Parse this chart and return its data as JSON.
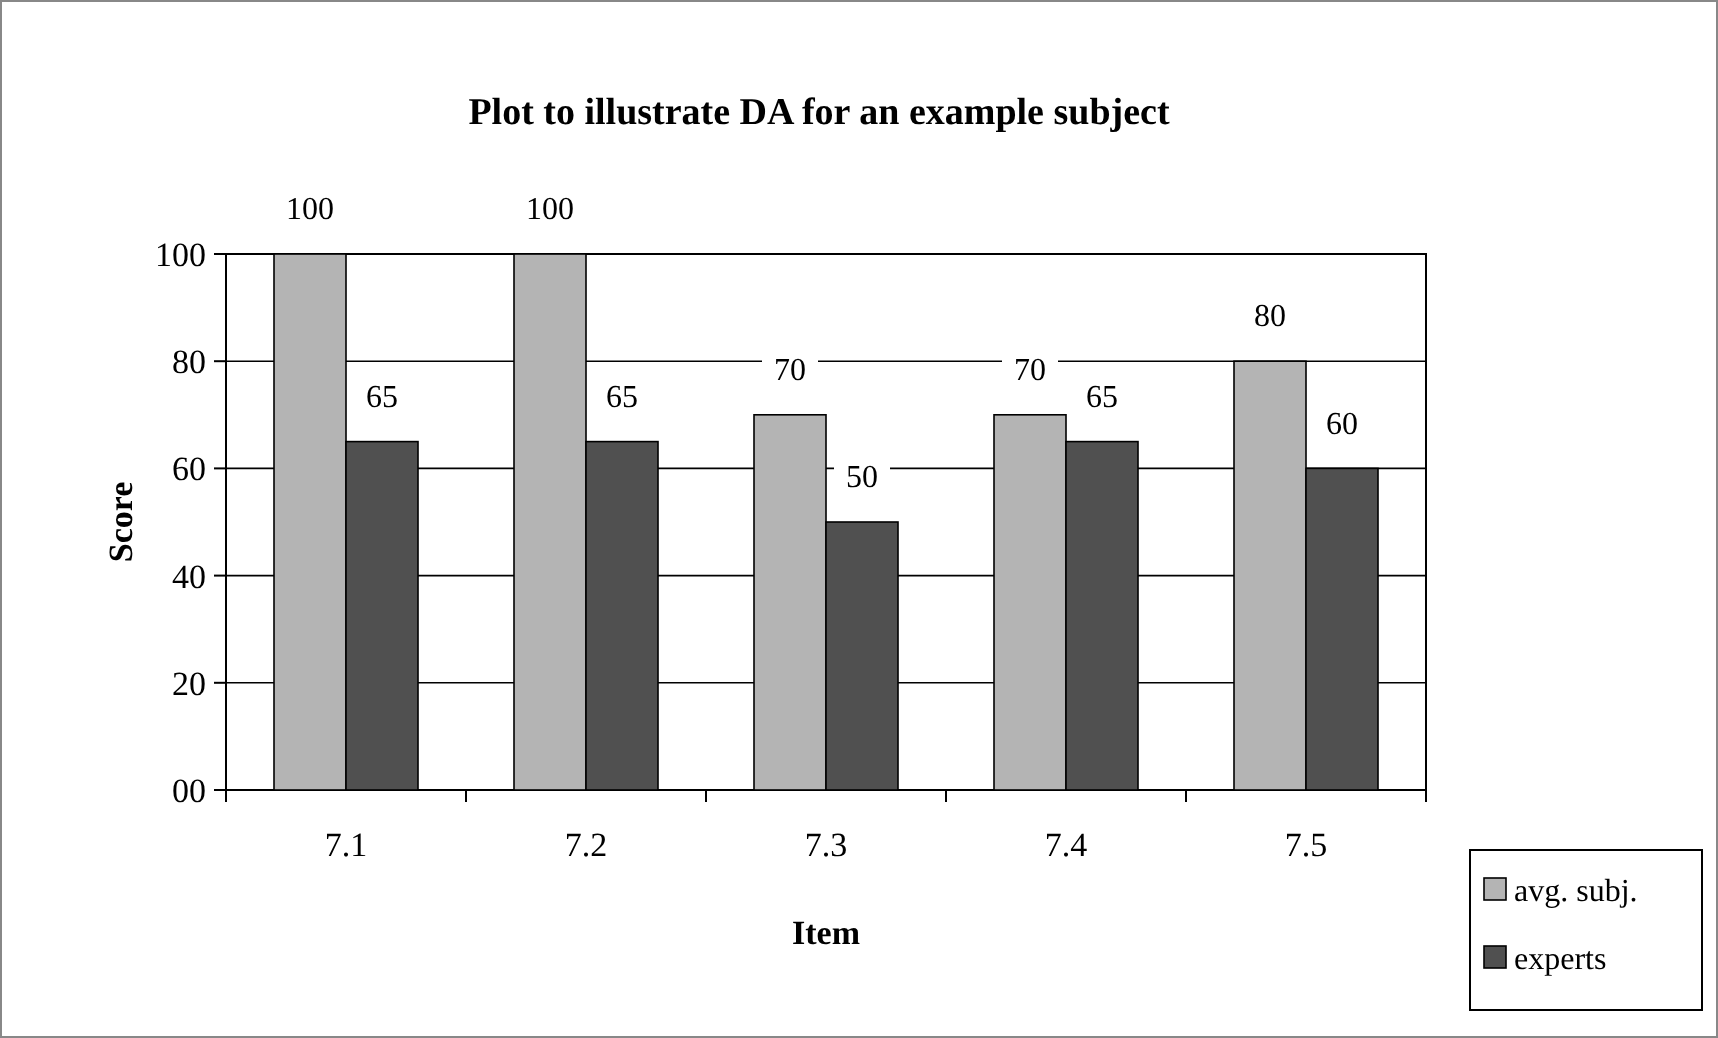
{
  "chart_data": {
    "type": "bar",
    "title": "Plot to illustrate DA for an example subject",
    "xlabel": "Item",
    "ylabel": "Score",
    "categories": [
      "7.1",
      "7.2",
      "7.3",
      "7.4",
      "7.5"
    ],
    "series": [
      {
        "name": "avg. subj.",
        "color": "#b4b4b4",
        "values": [
          100,
          100,
          70,
          70,
          80
        ]
      },
      {
        "name": "experts",
        "color": "#505050",
        "values": [
          65,
          65,
          50,
          65,
          60
        ]
      }
    ],
    "ylim": [
      0,
      100
    ],
    "yticks": [
      {
        "value": 0,
        "label": "00"
      },
      20,
      40,
      60,
      80,
      100
    ],
    "grid": "y",
    "legend": "bottom right",
    "data_labels": true
  }
}
